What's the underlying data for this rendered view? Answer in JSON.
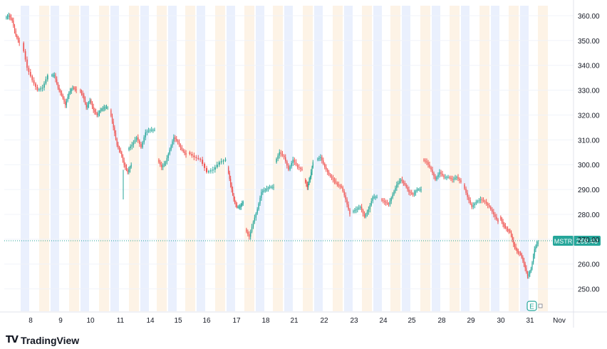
{
  "brand": {
    "logo_glyph": "TV",
    "name": "TradingView"
  },
  "chart_data": {
    "type": "candlestick",
    "symbol": "MSTR",
    "last_price": "269.40",
    "ylim": [
      241,
      364
    ],
    "y_ticks": [
      "360.00",
      "350.00",
      "340.00",
      "330.00",
      "320.00",
      "310.00",
      "300.00",
      "290.00",
      "280.00",
      "270.00",
      "260.00",
      "250.00"
    ],
    "x_ticks": [
      "8",
      "9",
      "10",
      "11",
      "14",
      "15",
      "16",
      "17",
      "18",
      "21",
      "22",
      "23",
      "24",
      "25",
      "28",
      "29",
      "30",
      "31",
      "Nov"
    ],
    "earnings_marker": "E",
    "colors": {
      "up": "#26a69a",
      "down": "#ef5350",
      "label_bg": "#26a69a",
      "grid": "#f0f3fa",
      "axis_text": "#131722",
      "premarket": "#eaf0fd",
      "afterhours": "#fdf3e6"
    },
    "sessions": [
      {
        "day": "8",
        "path": [
          359,
          360,
          358,
          352,
          349
        ]
      },
      {
        "day": "8b",
        "path": [
          349,
          339,
          334,
          330,
          331,
          336
        ]
      },
      {
        "day": "9",
        "path": [
          336,
          336,
          331,
          328,
          324,
          329,
          331,
          330
        ]
      },
      {
        "day": "10",
        "path": [
          330,
          328,
          323,
          326,
          322,
          320,
          322,
          323,
          323
        ]
      },
      {
        "day": "11",
        "path": [
          322,
          315,
          308,
          305,
          300,
          297,
          300
        ]
      },
      {
        "day": "14",
        "path": [
          306,
          308,
          311,
          307,
          313,
          314,
          314
        ]
      },
      {
        "day": "15",
        "path": [
          302,
          299,
          301,
          306,
          311,
          309,
          306,
          304
        ]
      },
      {
        "day": "16",
        "path": [
          305,
          303,
          302,
          297,
          298,
          301,
          302
        ]
      },
      {
        "day": "17",
        "path": [
          299,
          292,
          286,
          283,
          283,
          285
        ]
      },
      {
        "day": "17b",
        "path": [
          274,
          271,
          277,
          282,
          289,
          290,
          291,
          291
        ]
      },
      {
        "day": "21",
        "path": [
          301,
          305,
          303,
          298,
          302,
          299,
          298
        ]
      },
      {
        "day": "21b",
        "path": [
          294,
          291,
          295,
          301
        ]
      },
      {
        "day": "22",
        "path": [
          302,
          303,
          299,
          296,
          294,
          292,
          291,
          286,
          280
        ]
      },
      {
        "day": "23",
        "path": [
          281,
          282,
          283,
          279,
          282,
          287,
          287
        ]
      },
      {
        "day": "24",
        "path": [
          286,
          285,
          284,
          288,
          292,
          294,
          292,
          289,
          288,
          290,
          290
        ]
      },
      {
        "day": "28",
        "path": [
          302,
          301,
          298,
          294,
          297,
          295,
          295,
          294,
          295,
          293
        ]
      },
      {
        "day": "29",
        "path": [
          292,
          287,
          283,
          285,
          286,
          285,
          283,
          280,
          277
        ]
      },
      {
        "day": "30",
        "path": [
          279,
          276,
          274,
          273,
          268,
          265,
          264,
          260,
          255,
          258,
          266,
          269
        ]
      }
    ]
  }
}
